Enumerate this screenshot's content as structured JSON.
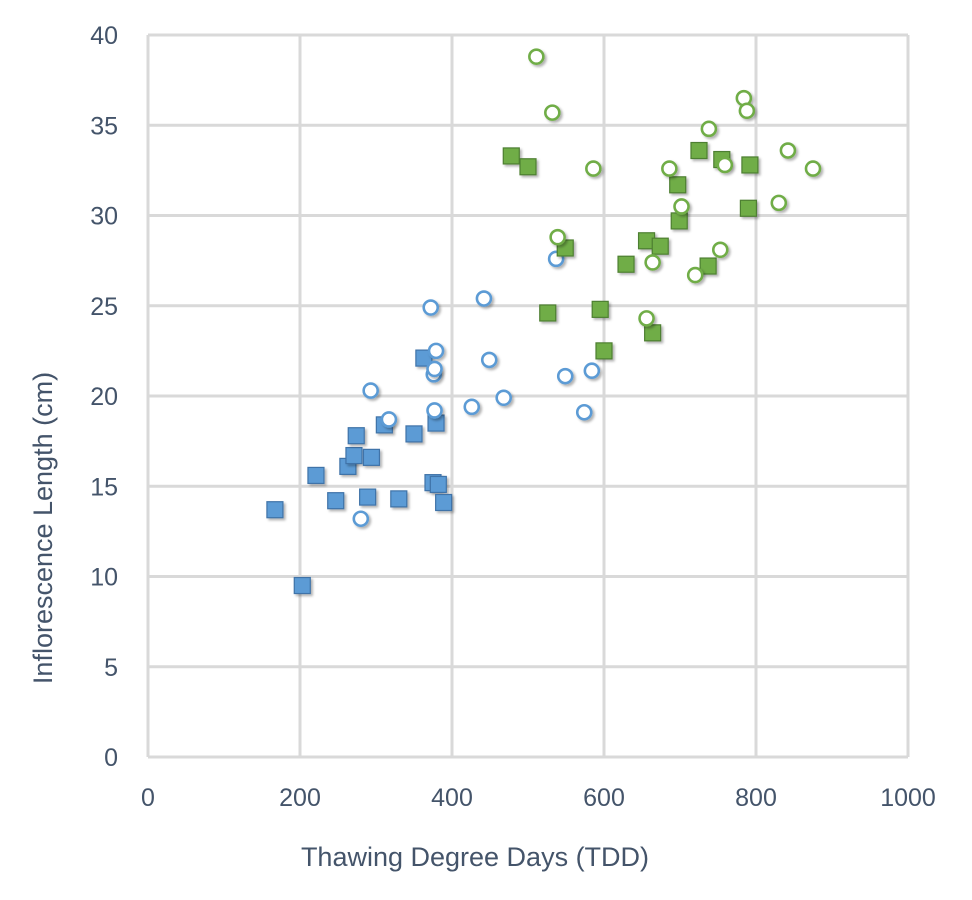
{
  "chart_data": {
    "type": "scatter",
    "title": "",
    "xlabel": "Thawing Degree Days (TDD)",
    "ylabel": "Inflorescence Length (cm)",
    "xlim": [
      0,
      1000
    ],
    "ylim": [
      0,
      40
    ],
    "xticks": [
      0,
      200,
      400,
      600,
      800,
      1000
    ],
    "yticks": [
      0,
      5,
      10,
      15,
      20,
      25,
      30,
      35,
      40
    ],
    "grid": true,
    "legend": "none",
    "series": [
      {
        "marker": "square",
        "color": "#5b9bd5",
        "edge": "#3f73a8",
        "filled": true,
        "points": [
          [
            167,
            13.7
          ],
          [
            203,
            9.5
          ],
          [
            221,
            15.6
          ],
          [
            247,
            14.2
          ],
          [
            263,
            16.1
          ],
          [
            271,
            16.7
          ],
          [
            274,
            17.8
          ],
          [
            289,
            14.4
          ],
          [
            294,
            16.6
          ],
          [
            311,
            18.4
          ],
          [
            330,
            14.3
          ],
          [
            350,
            17.9
          ],
          [
            363,
            22.1
          ],
          [
            375,
            15.2
          ],
          [
            379,
            18.5
          ],
          [
            382,
            15.1
          ],
          [
            389,
            14.1
          ]
        ]
      },
      {
        "marker": "circle",
        "color": "#5b9bd5",
        "edge": "#5b9bd5",
        "filled": false,
        "points": [
          [
            280,
            13.2
          ],
          [
            293,
            20.3
          ],
          [
            317,
            18.7
          ],
          [
            372,
            24.9
          ],
          [
            379,
            22.5
          ],
          [
            376,
            21.2
          ],
          [
            377,
            21.5
          ],
          [
            377,
            19.2
          ],
          [
            426,
            19.4
          ],
          [
            442,
            25.4
          ],
          [
            449,
            22.0
          ],
          [
            468,
            19.9
          ],
          [
            537,
            27.6
          ],
          [
            549,
            21.1
          ],
          [
            584,
            21.4
          ],
          [
            574,
            19.1
          ]
        ]
      },
      {
        "marker": "square",
        "color": "#70ad47",
        "edge": "#4e7f30",
        "filled": true,
        "points": [
          [
            478,
            33.3
          ],
          [
            500,
            32.7
          ],
          [
            549,
            28.2
          ],
          [
            526,
            24.6
          ],
          [
            595,
            24.8
          ],
          [
            600,
            22.5
          ],
          [
            629,
            27.3
          ],
          [
            656,
            28.6
          ],
          [
            674,
            28.3
          ],
          [
            664,
            23.5
          ],
          [
            697,
            31.7
          ],
          [
            699,
            29.7
          ],
          [
            725,
            33.6
          ],
          [
            755,
            33.1
          ],
          [
            737,
            27.2
          ],
          [
            792,
            32.8
          ],
          [
            790,
            30.4
          ]
        ]
      },
      {
        "marker": "circle",
        "color": "#70ad47",
        "edge": "#70ad47",
        "filled": false,
        "points": [
          [
            511,
            38.8
          ],
          [
            532,
            35.7
          ],
          [
            586,
            32.6
          ],
          [
            539,
            28.8
          ],
          [
            656,
            24.3
          ],
          [
            664,
            27.4
          ],
          [
            686,
            32.6
          ],
          [
            702,
            30.5
          ],
          [
            720,
            26.7
          ],
          [
            738,
            34.8
          ],
          [
            753,
            28.1
          ],
          [
            759,
            32.8
          ],
          [
            784,
            36.5
          ],
          [
            788,
            35.8
          ],
          [
            830,
            30.7
          ],
          [
            842,
            33.6
          ],
          [
            875,
            32.6
          ]
        ]
      }
    ]
  }
}
